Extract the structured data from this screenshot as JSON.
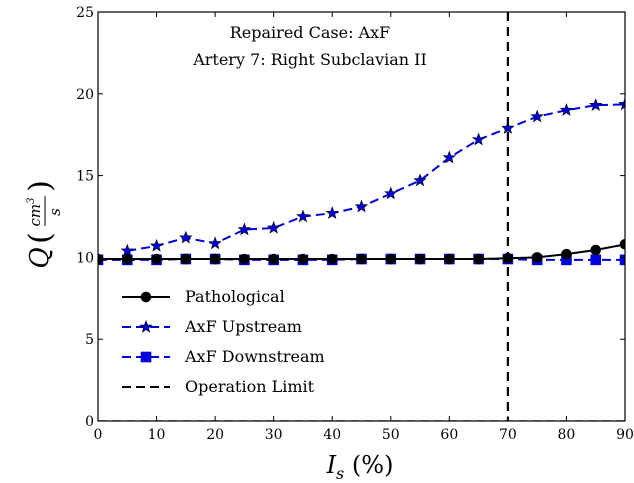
{
  "chart_data": {
    "type": "line",
    "title_lines": [
      "Repaired Case: AxF",
      "Artery 7: Right Subclavian II"
    ],
    "xlabel": {
      "main": "I",
      "sub": "s",
      "rest": " (%)"
    },
    "ylabel": {
      "main": "Q",
      "num": "cm",
      "num_exp": "3",
      "den": "s"
    },
    "xlim": [
      0,
      90
    ],
    "ylim": [
      0,
      25
    ],
    "xticks": [
      0,
      10,
      20,
      30,
      40,
      50,
      60,
      70,
      80,
      90
    ],
    "yticks": [
      0,
      5,
      10,
      15,
      20,
      25
    ],
    "grid": false,
    "legend_position": "lower-left",
    "series": [
      {
        "name": "Pathological",
        "color": "#000000",
        "style": "solid",
        "marker": "circle",
        "x": [
          0,
          5,
          10,
          15,
          20,
          25,
          30,
          35,
          40,
          45,
          50,
          55,
          60,
          65,
          70,
          75,
          80,
          85,
          90
        ],
        "y": [
          9.9,
          9.9,
          9.9,
          9.9,
          9.9,
          9.9,
          9.9,
          9.9,
          9.9,
          9.9,
          9.9,
          9.9,
          9.9,
          9.9,
          9.95,
          10.0,
          10.2,
          10.45,
          10.8
        ]
      },
      {
        "name": "AxF Upstream",
        "color": "#0000dd",
        "style": "dashed",
        "marker": "star",
        "x": [
          5,
          10,
          15,
          20,
          25,
          30,
          35,
          40,
          45,
          50,
          55,
          60,
          65,
          70,
          75,
          80,
          85,
          90
        ],
        "y": [
          10.4,
          10.7,
          11.2,
          10.85,
          11.7,
          11.8,
          12.5,
          12.7,
          13.1,
          13.9,
          14.7,
          16.1,
          17.2,
          17.9,
          18.6,
          19.0,
          19.3,
          19.35
        ]
      },
      {
        "name": "AxF Downstream",
        "color": "#0000dd",
        "style": "dashed",
        "marker": "square",
        "x": [
          0,
          5,
          10,
          15,
          20,
          25,
          30,
          35,
          40,
          45,
          50,
          55,
          60,
          65,
          70,
          75,
          80,
          85,
          90
        ],
        "y": [
          9.85,
          9.85,
          9.85,
          9.9,
          9.9,
          9.85,
          9.85,
          9.85,
          9.85,
          9.9,
          9.9,
          9.9,
          9.9,
          9.9,
          9.9,
          9.85,
          9.85,
          9.85,
          9.85
        ]
      }
    ],
    "vline": {
      "name": "Operation Limit",
      "x": 70,
      "color": "#000000",
      "style": "dashed"
    },
    "hline": {
      "y": 0,
      "color": "#444444",
      "style": "dashed"
    }
  }
}
